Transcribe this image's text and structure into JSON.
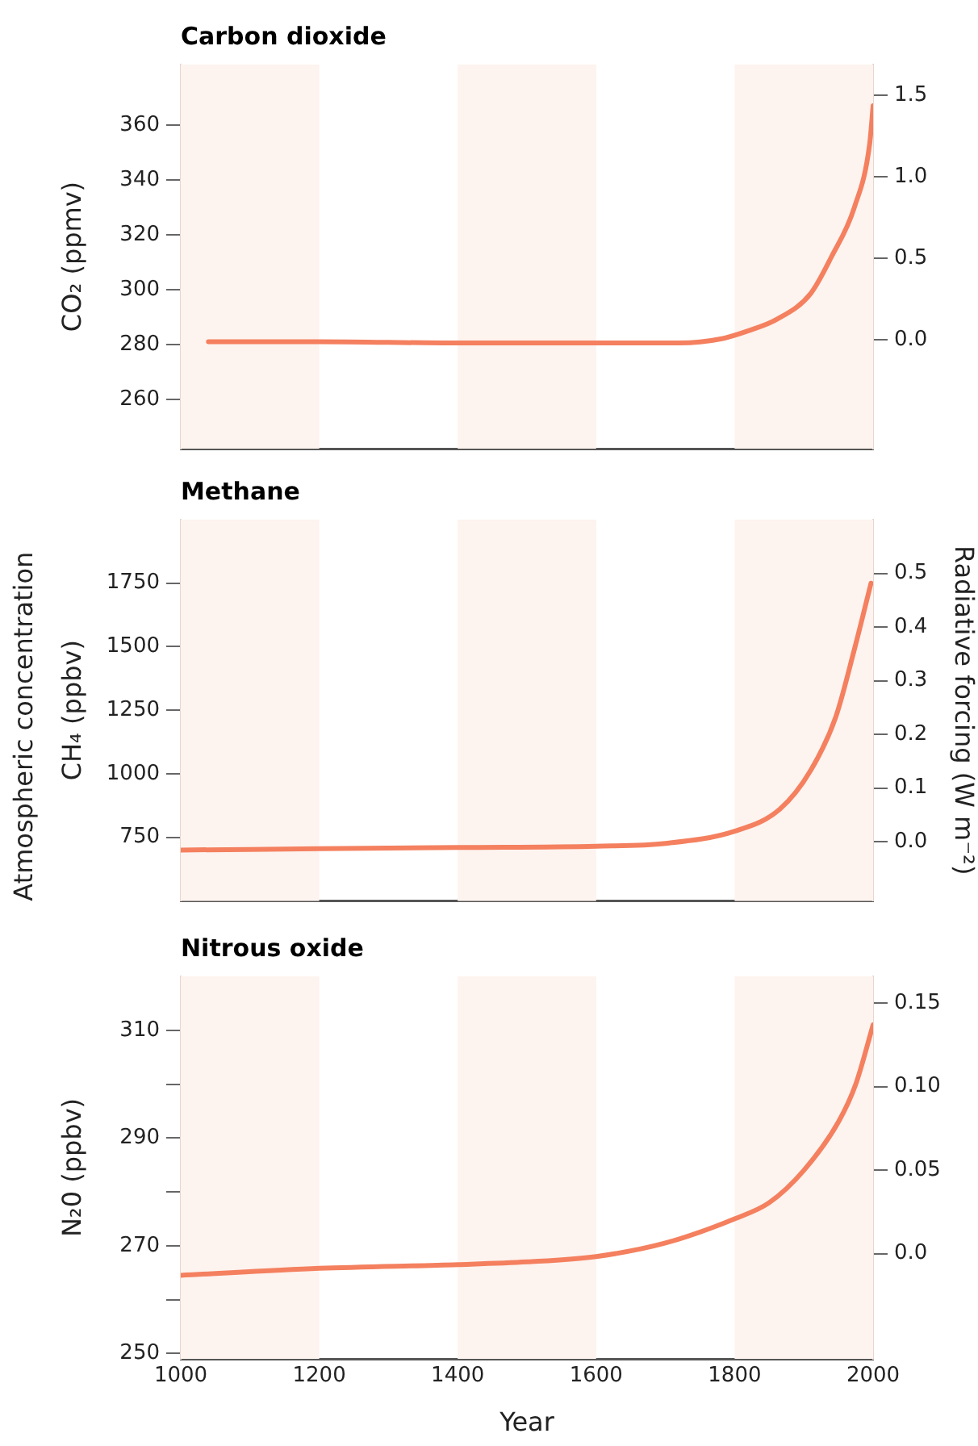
{
  "chart_data": [
    {
      "type": "line",
      "title": "Carbon dioxide",
      "ylabel": "CO₂ (ppmv)",
      "x": [
        1040,
        1200,
        1400,
        1600,
        1720,
        1780,
        1820,
        1860,
        1910,
        1940,
        1973,
        1995,
        2000
      ],
      "series": [
        {
          "color": "#f4805f",
          "values": [
            281,
            281,
            280.5,
            280.5,
            280.5,
            282,
            285,
            289,
            298.6,
            312,
            330,
            353,
            367
          ]
        }
      ],
      "xlim": [
        1000,
        2000
      ],
      "ylim": [
        242,
        382
      ],
      "yticks": [
        260,
        280,
        300,
        320,
        340,
        360
      ],
      "y2lim": [
        -0.67,
        1.69
      ],
      "y2ticks": [
        {
          "value": 0,
          "label": "0.0"
        },
        0.5,
        {
          "value": 1,
          "label": "1.0"
        },
        1.5
      ],
      "bands": [
        {
          "axis": "x",
          "from": 1000,
          "to": 1200,
          "color": "#fdf3ef"
        },
        {
          "axis": "x",
          "from": 1400,
          "to": 1600,
          "color": "#fdf3ef"
        },
        {
          "axis": "x",
          "from": 1800,
          "to": 2000,
          "color": "#fdf3ef"
        }
      ],
      "tick_labels": "y",
      "marker": "none",
      "legend": false,
      "grid": false
    },
    {
      "type": "line",
      "title": "Methane",
      "ylabel": "CH₄ (ppbv)",
      "y2label": "Radiative forcing (W m⁻²)",
      "annotations": [
        "Atmospheric concentration"
      ],
      "x": [
        1000,
        1200,
        1400,
        1600,
        1700,
        1800,
        1865,
        1910,
        1946,
        1973,
        1997
      ],
      "series": [
        {
          "color": "#f4805f",
          "values": [
            700,
            705,
            710,
            715,
            726,
            774,
            860,
            1014,
            1223,
            1490,
            1750
          ]
        }
      ],
      "xlim": [
        1000,
        2000
      ],
      "ylim": [
        500,
        2000
      ],
      "yticks": [
        750,
        1000,
        1250,
        1500,
        1750
      ],
      "y2lim": [
        -0.11,
        0.6
      ],
      "y2ticks": [
        {
          "value": 0,
          "label": "0.0"
        },
        0.1,
        0.2,
        0.3,
        0.4,
        0.5
      ],
      "bands": [
        {
          "axis": "x",
          "from": 1000,
          "to": 1200,
          "color": "#fdf3ef"
        },
        {
          "axis": "x",
          "from": 1400,
          "to": 1600,
          "color": "#fdf3ef"
        },
        {
          "axis": "x",
          "from": 1800,
          "to": 2000,
          "color": "#fdf3ef"
        }
      ],
      "tick_labels": "y",
      "marker": "none",
      "legend": false,
      "grid": false
    },
    {
      "type": "line",
      "title": "Nitrous oxide",
      "ylabel": "N₂0 (ppbv)",
      "xlabel": "Year",
      "x": [
        1000,
        1200,
        1400,
        1500,
        1600,
        1700,
        1800,
        1850,
        1900,
        1950,
        1975,
        2000
      ],
      "series": [
        {
          "color": "#f4805f",
          "values": [
            264.5,
            265.8,
            266.5,
            267,
            268,
            270.5,
            275,
            278,
            284,
            293,
            300,
            311
          ]
        }
      ],
      "xlim": [
        1000,
        2000
      ],
      "xticks": [
        1000,
        1200,
        1400,
        1600,
        1800,
        2000
      ],
      "ylim": [
        249,
        320
      ],
      "yticks": [
        250,
        {
          "value": 260,
          "label": null
        },
        270,
        {
          "value": 280,
          "label": null
        },
        290,
        {
          "value": 300,
          "label": null
        },
        310
      ],
      "y2lim": [
        -0.063,
        0.166
      ],
      "y2ticks": [
        {
          "value": 0,
          "label": "0.0"
        },
        0.05,
        {
          "value": 0.1,
          "label": "0.10"
        },
        0.15
      ],
      "bands": [
        {
          "axis": "x",
          "from": 1000,
          "to": 1200,
          "color": "#fdf3ef"
        },
        {
          "axis": "x",
          "from": 1400,
          "to": 1600,
          "color": "#fdf3ef"
        },
        {
          "axis": "x",
          "from": 1800,
          "to": 2000,
          "color": "#fdf3ef"
        }
      ],
      "marker": "none",
      "legend": false,
      "grid": false
    }
  ]
}
